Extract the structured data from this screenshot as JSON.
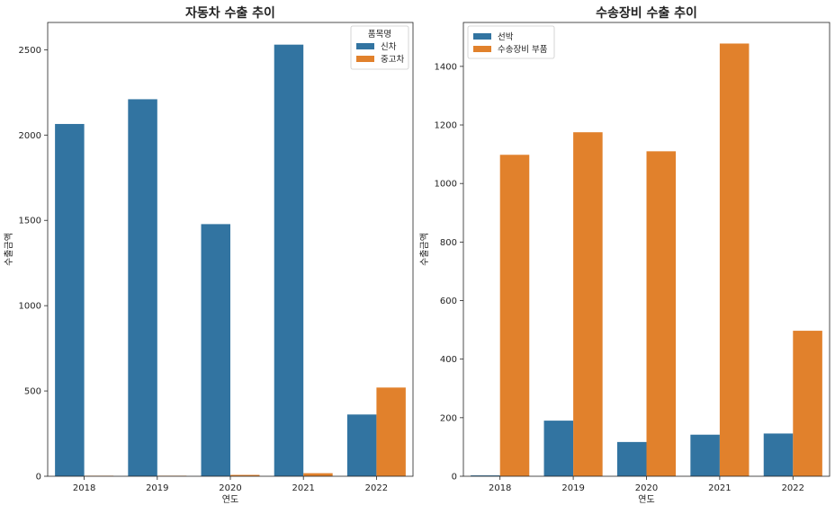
{
  "chart_data": [
    {
      "type": "bar",
      "title": "자동차 수출 추이",
      "xlabel": "연도",
      "ylabel": "수출금액",
      "categories": [
        "2018",
        "2019",
        "2020",
        "2021",
        "2022"
      ],
      "ylim": [
        0,
        2660
      ],
      "yticks": [
        0,
        500,
        1000,
        1500,
        2000,
        2500
      ],
      "legend_title": "품목명",
      "legend_position": "top-right",
      "series": [
        {
          "name": "신차",
          "color": "#3274a1",
          "values": [
            2065,
            2210,
            1478,
            2530,
            362
          ]
        },
        {
          "name": "중고차",
          "color": "#e1812c",
          "values": [
            3,
            3,
            8,
            18,
            520
          ]
        }
      ]
    },
    {
      "type": "bar",
      "title": "수송장비 수출 추이",
      "xlabel": "연도",
      "ylabel": "수출금액",
      "categories": [
        "2018",
        "2019",
        "2020",
        "2021",
        "2022"
      ],
      "ylim": [
        0,
        1550
      ],
      "yticks": [
        0,
        200,
        400,
        600,
        800,
        1000,
        1200,
        1400
      ],
      "legend_title": "",
      "legend_position": "top-left",
      "series": [
        {
          "name": "선박",
          "color": "#3274a1",
          "values": [
            3,
            190,
            117,
            142,
            146
          ]
        },
        {
          "name": "수송장비 부품",
          "color": "#e1812c",
          "values": [
            1098,
            1175,
            1110,
            1478,
            497
          ]
        }
      ]
    }
  ]
}
